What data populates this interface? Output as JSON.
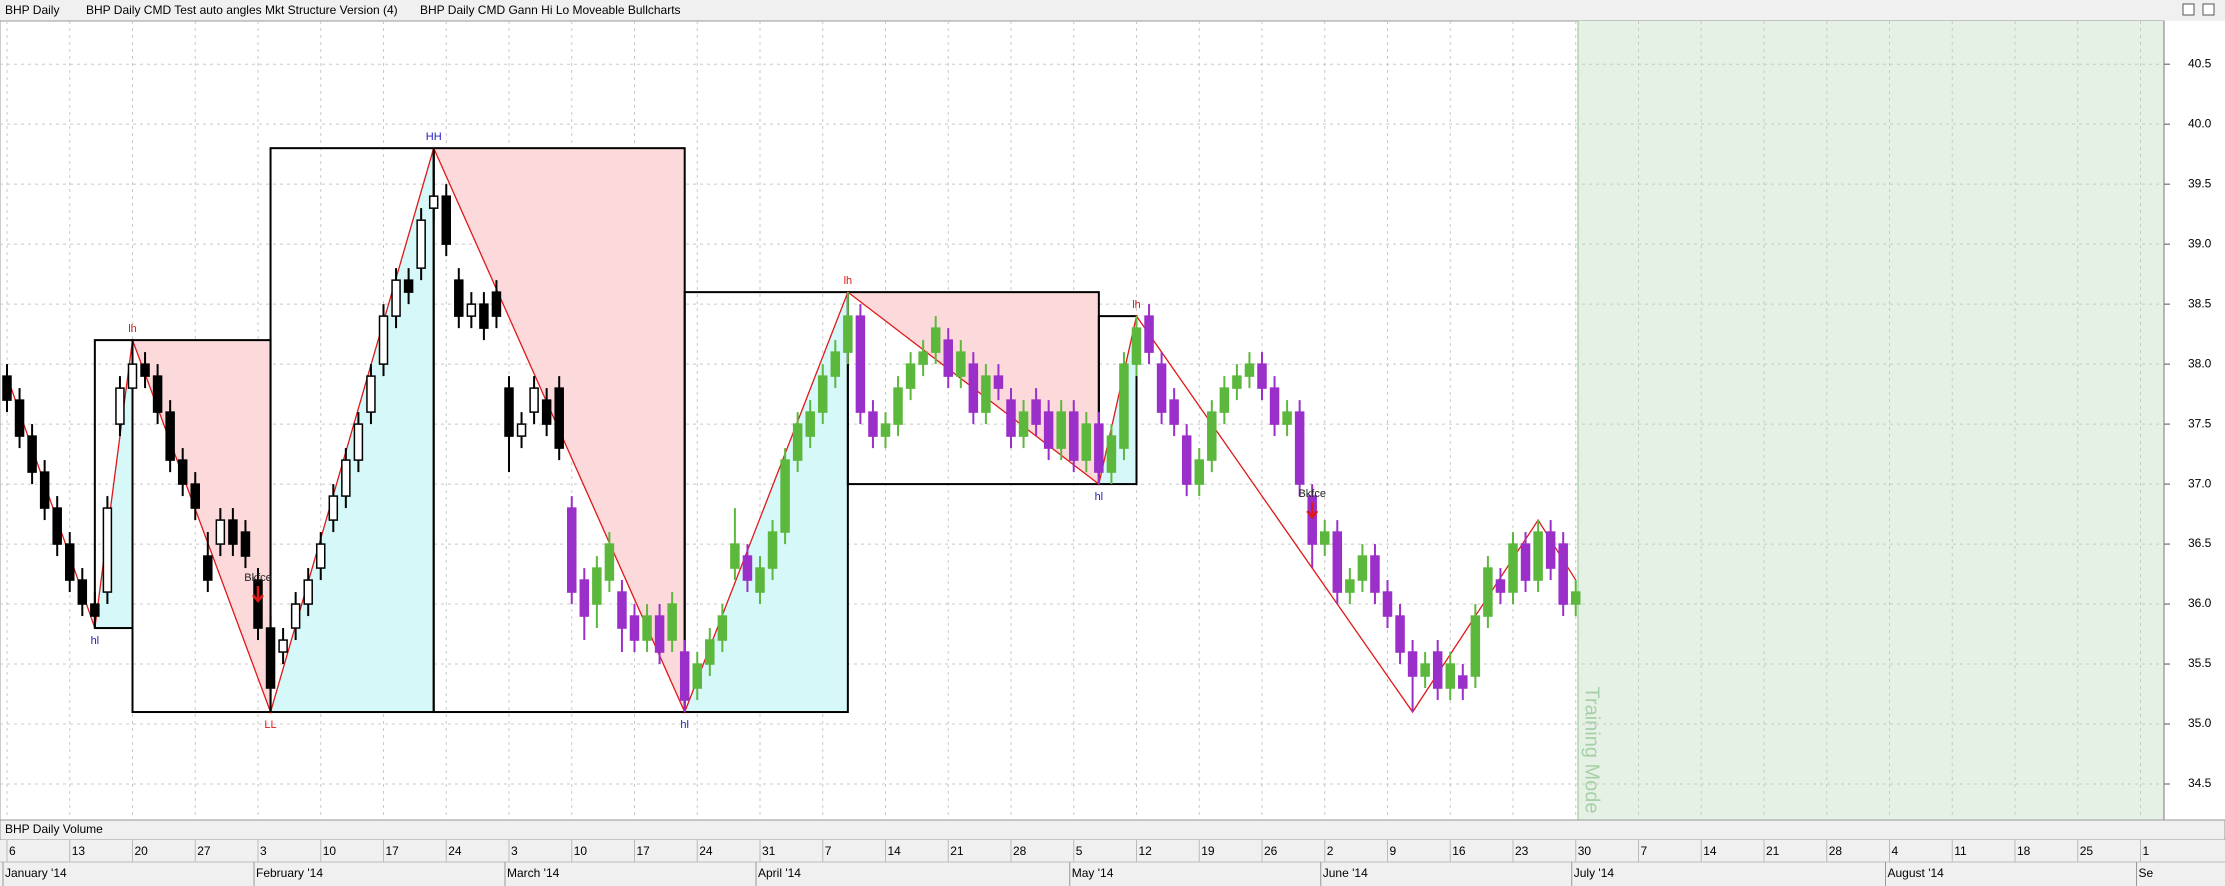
{
  "chart_data": {
    "type": "candlestick",
    "title": "BHP  Daily",
    "indicators": [
      "BHP  Daily  CMD Test auto angles Mkt Structure Version (4)",
      "BHP  Daily  CMD Gann Hi Lo Moveable Bullcharts"
    ],
    "volume_title": "BHP  Daily  Volume",
    "training_label": "Training Mode",
    "grid": true,
    "ylim": [
      34.2,
      40.86
    ],
    "yticks": [
      34.5,
      {
        "value": 35,
        "label": "35.0"
      },
      35.5,
      {
        "value": 36,
        "label": "36.0"
      },
      36.5,
      {
        "value": 37,
        "label": "37.0"
      },
      37.5,
      {
        "value": 38,
        "label": "38.0"
      },
      38.5,
      {
        "value": 39,
        "label": "39.0"
      },
      39.5,
      {
        "value": 40,
        "label": "40.0"
      },
      40.5
    ],
    "categories": [
      "6",
      "13",
      "20",
      "27",
      "3",
      "10",
      "17",
      "24",
      "3",
      "10",
      "17",
      "24",
      "31",
      "7",
      "14",
      "21",
      "28",
      "5",
      "12",
      "19",
      "26",
      "2",
      "9",
      "16",
      "23",
      "30",
      "7",
      "14",
      "21",
      "28",
      "4",
      "11",
      "18",
      "25",
      "1"
    ],
    "months": [
      "January '14",
      null,
      null,
      null,
      "February '14",
      null,
      null,
      null,
      "March '14",
      null,
      null,
      null,
      "April '14",
      null,
      null,
      null,
      null,
      "May '14",
      null,
      null,
      null,
      "June '14",
      null,
      null,
      null,
      "July '14",
      null,
      null,
      null,
      null,
      "August '14",
      null,
      null,
      null,
      "Se"
    ],
    "series": [
      {
        "up_color": "#ffffff",
        "down_color": "#000000",
        "wick_color": "#000000",
        "values": [
          [
            37.9,
            38.0,
            37.6,
            37.7
          ],
          [
            37.7,
            37.8,
            37.3,
            37.4
          ],
          [
            37.4,
            37.5,
            37.0,
            37.1
          ],
          [
            37.1,
            37.2,
            36.7,
            36.8
          ],
          [
            36.8,
            36.9,
            36.4,
            36.5
          ],
          [
            36.5,
            36.6,
            36.1,
            36.2
          ],
          [
            36.2,
            36.3,
            35.9,
            36.0
          ],
          [
            36.0,
            36.1,
            35.8,
            35.9
          ],
          [
            36.1,
            36.9,
            36.0,
            36.8
          ],
          [
            37.5,
            37.9,
            37.4,
            37.8
          ],
          [
            37.8,
            38.2,
            37.7,
            38.0
          ],
          [
            38.0,
            38.1,
            37.8,
            37.9
          ],
          [
            37.9,
            38.0,
            37.5,
            37.6
          ],
          [
            37.6,
            37.7,
            37.1,
            37.2
          ],
          [
            37.2,
            37.3,
            36.9,
            37.0
          ],
          [
            37.0,
            37.1,
            36.7,
            36.8
          ],
          [
            36.4,
            36.6,
            36.1,
            36.2
          ],
          [
            36.5,
            36.8,
            36.4,
            36.7
          ],
          [
            36.7,
            36.8,
            36.4,
            36.5
          ],
          [
            36.6,
            36.7,
            36.3,
            36.4
          ],
          [
            36.2,
            36.3,
            35.7,
            35.8
          ],
          [
            35.8,
            35.9,
            35.1,
            35.3
          ],
          [
            35.6,
            35.8,
            35.5,
            35.7
          ],
          [
            35.8,
            36.1,
            35.7,
            36.0
          ],
          [
            36.0,
            36.3,
            35.9,
            36.2
          ],
          [
            36.3,
            36.6,
            36.2,
            36.5
          ],
          [
            36.7,
            37.0,
            36.6,
            36.9
          ],
          [
            36.9,
            37.3,
            36.8,
            37.2
          ],
          [
            37.2,
            37.6,
            37.1,
            37.5
          ],
          [
            37.6,
            38.0,
            37.5,
            37.9
          ],
          [
            38.0,
            38.5,
            37.9,
            38.4
          ],
          [
            38.4,
            38.8,
            38.3,
            38.7
          ],
          [
            38.7,
            38.8,
            38.5,
            38.6
          ],
          [
            38.8,
            39.3,
            38.7,
            39.2
          ],
          [
            39.3,
            39.8,
            39.2,
            39.4
          ],
          [
            39.4,
            39.5,
            38.9,
            39.0
          ],
          [
            38.7,
            38.8,
            38.3,
            38.4
          ],
          [
            38.4,
            38.6,
            38.3,
            38.5
          ],
          [
            38.5,
            38.6,
            38.2,
            38.3
          ],
          [
            38.6,
            38.7,
            38.3,
            38.4
          ],
          [
            37.8,
            37.9,
            37.1,
            37.4
          ],
          [
            37.4,
            37.6,
            37.3,
            37.5
          ],
          [
            37.6,
            37.9,
            37.5,
            37.8
          ],
          [
            37.7,
            37.8,
            37.4,
            37.5
          ],
          [
            37.8,
            37.9,
            37.2,
            37.3
          ],
          null,
          null,
          null,
          null,
          null,
          null,
          null,
          null,
          null,
          null,
          null,
          null,
          null,
          null,
          null,
          null,
          null,
          null,
          null,
          null,
          null,
          null,
          null,
          null,
          null,
          null,
          null,
          null,
          null,
          null,
          null,
          null,
          null,
          null,
          null,
          null,
          null,
          null,
          null,
          null,
          null,
          null,
          null,
          null,
          null,
          null,
          null,
          null,
          null,
          null,
          null,
          null,
          null,
          null,
          null,
          null,
          null,
          null,
          null,
          null,
          null,
          null,
          null,
          null,
          null,
          null,
          null,
          null,
          null,
          null,
          null,
          null,
          null,
          null,
          null,
          null,
          null,
          null,
          null,
          null,
          null
        ]
      },
      {
        "up_color": "#5cb83c",
        "down_color": "#9b2fc9",
        "wick_color": null,
        "values": [
          null,
          null,
          null,
          null,
          null,
          null,
          null,
          null,
          null,
          null,
          null,
          null,
          null,
          null,
          null,
          null,
          null,
          null,
          null,
          null,
          null,
          null,
          null,
          null,
          null,
          null,
          null,
          null,
          null,
          null,
          null,
          null,
          null,
          null,
          null,
          null,
          null,
          null,
          null,
          null,
          null,
          null,
          null,
          null,
          null,
          [
            36.8,
            36.9,
            36.0,
            36.1
          ],
          [
            36.2,
            36.3,
            35.7,
            35.9
          ],
          [
            36.0,
            36.4,
            35.8,
            36.3
          ],
          [
            36.2,
            36.6,
            36.1,
            36.5
          ],
          [
            36.1,
            36.2,
            35.6,
            35.8
          ],
          [
            35.9,
            36.0,
            35.6,
            35.7
          ],
          [
            35.7,
            36.0,
            35.6,
            35.9
          ],
          [
            35.9,
            36.0,
            35.5,
            35.6
          ],
          [
            35.7,
            36.1,
            35.6,
            36.0
          ],
          [
            35.6,
            35.7,
            35.1,
            35.2
          ],
          [
            35.3,
            35.6,
            35.2,
            35.5
          ],
          [
            35.5,
            35.8,
            35.4,
            35.7
          ],
          [
            35.7,
            36.0,
            35.6,
            35.9
          ],
          [
            36.3,
            36.8,
            36.2,
            36.5
          ],
          [
            36.4,
            36.5,
            36.1,
            36.2
          ],
          [
            36.1,
            36.4,
            36.0,
            36.3
          ],
          [
            36.3,
            36.7,
            36.2,
            36.6
          ],
          [
            36.6,
            37.3,
            36.5,
            37.2
          ],
          [
            37.2,
            37.6,
            37.1,
            37.5
          ],
          [
            37.4,
            37.7,
            37.3,
            37.6
          ],
          [
            37.6,
            38.0,
            37.5,
            37.9
          ],
          [
            37.9,
            38.2,
            37.8,
            38.1
          ],
          [
            38.1,
            38.6,
            38.0,
            38.4
          ],
          [
            38.4,
            38.5,
            37.5,
            37.6
          ],
          [
            37.6,
            37.7,
            37.3,
            37.4
          ],
          [
            37.4,
            37.6,
            37.3,
            37.5
          ],
          [
            37.5,
            37.9,
            37.4,
            37.8
          ],
          [
            37.8,
            38.1,
            37.7,
            38.0
          ],
          [
            38.0,
            38.2,
            37.9,
            38.1
          ],
          [
            38.1,
            38.4,
            38.0,
            38.3
          ],
          [
            38.2,
            38.3,
            37.8,
            37.9
          ],
          [
            37.9,
            38.2,
            37.8,
            38.1
          ],
          [
            38.0,
            38.1,
            37.5,
            37.6
          ],
          [
            37.6,
            38.0,
            37.5,
            37.9
          ],
          [
            37.9,
            38.0,
            37.7,
            37.8
          ],
          [
            37.7,
            37.8,
            37.3,
            37.4
          ],
          [
            37.4,
            37.7,
            37.3,
            37.6
          ],
          [
            37.7,
            37.8,
            37.4,
            37.5
          ],
          [
            37.6,
            37.7,
            37.2,
            37.3
          ],
          [
            37.3,
            37.7,
            37.2,
            37.6
          ],
          [
            37.6,
            37.7,
            37.1,
            37.2
          ],
          [
            37.2,
            37.6,
            37.1,
            37.5
          ],
          [
            37.5,
            37.6,
            37.0,
            37.1
          ],
          [
            37.1,
            37.5,
            37.0,
            37.4
          ],
          [
            37.3,
            38.1,
            37.2,
            38.0
          ],
          [
            38.0,
            38.4,
            37.9,
            38.3
          ],
          [
            38.4,
            38.5,
            38.0,
            38.1
          ],
          [
            38.0,
            38.1,
            37.5,
            37.6
          ],
          [
            37.7,
            37.8,
            37.4,
            37.5
          ],
          [
            37.4,
            37.5,
            36.9,
            37.0
          ],
          [
            37.0,
            37.3,
            36.9,
            37.2
          ],
          [
            37.2,
            37.7,
            37.1,
            37.6
          ],
          [
            37.6,
            37.9,
            37.5,
            37.8
          ],
          [
            37.8,
            38.0,
            37.7,
            37.9
          ],
          [
            37.9,
            38.1,
            37.8,
            38.0
          ],
          [
            38.0,
            38.1,
            37.7,
            37.8
          ],
          [
            37.8,
            37.9,
            37.4,
            37.5
          ],
          [
            37.5,
            37.7,
            37.4,
            37.6
          ],
          [
            37.6,
            37.7,
            36.9,
            37.0
          ],
          [
            36.9,
            37.0,
            36.3,
            36.5
          ],
          [
            36.5,
            36.7,
            36.4,
            36.6
          ],
          [
            36.6,
            36.7,
            36.0,
            36.1
          ],
          [
            36.1,
            36.3,
            36.0,
            36.2
          ],
          [
            36.2,
            36.5,
            36.1,
            36.4
          ],
          [
            36.4,
            36.5,
            36.0,
            36.1
          ],
          [
            36.1,
            36.2,
            35.8,
            35.9
          ],
          [
            35.9,
            36.0,
            35.5,
            35.6
          ],
          [
            35.6,
            35.7,
            35.1,
            35.4
          ],
          [
            35.4,
            35.6,
            35.3,
            35.5
          ],
          [
            35.6,
            35.7,
            35.2,
            35.3
          ],
          [
            35.3,
            35.6,
            35.2,
            35.5
          ],
          [
            35.4,
            35.5,
            35.2,
            35.3
          ],
          [
            35.4,
            36.0,
            35.3,
            35.9
          ],
          [
            35.9,
            36.4,
            35.8,
            36.3
          ],
          [
            36.2,
            36.3,
            36.0,
            36.1
          ],
          [
            36.1,
            36.6,
            36.0,
            36.5
          ],
          [
            36.5,
            36.6,
            36.1,
            36.2
          ],
          [
            36.2,
            36.7,
            36.1,
            36.6
          ],
          [
            36.6,
            36.7,
            36.2,
            36.3
          ],
          [
            36.5,
            36.6,
            35.9,
            36.0
          ],
          [
            36.0,
            36.2,
            35.9,
            36.1
          ]
        ]
      }
    ],
    "structure": {
      "color": "#e01818",
      "rise_fill": "#d6f8f8",
      "fall_fill": "#fcd9da",
      "points": [
        {
          "x": 0,
          "y": 37.9
        },
        {
          "x": 7,
          "y": 35.8,
          "label": "hl",
          "color": "#2020c0"
        },
        {
          "x": 10,
          "y": 38.2,
          "label": "lh",
          "color": "#e01818"
        },
        {
          "x": 21,
          "y": 35.1,
          "label": "LL",
          "color": "#e01818"
        },
        {
          "x": 34,
          "y": 39.8,
          "label": "HH",
          "color": "#2020c0"
        },
        {
          "x": 54,
          "y": 35.1,
          "label": "hl",
          "color": "#2020c0"
        },
        {
          "x": 67,
          "y": 38.6,
          "label": "lh",
          "color": "#e01818"
        },
        {
          "x": 87,
          "y": 37.0,
          "label": "hl",
          "color": "#2020c0"
        },
        {
          "x": 90,
          "y": 38.4,
          "label": "lh",
          "color": "#e01818"
        },
        {
          "x": 112,
          "y": 35.1
        },
        {
          "x": 122,
          "y": 36.7
        },
        {
          "x": 125,
          "y": 36.2
        }
      ]
    },
    "annotations": [
      {
        "text": "Bkfce",
        "x": 20,
        "y": 36.15,
        "color": "#e01818"
      },
      {
        "text": "Bkfce",
        "x": 104,
        "y": 36.85,
        "color": "#e01818"
      }
    ]
  }
}
